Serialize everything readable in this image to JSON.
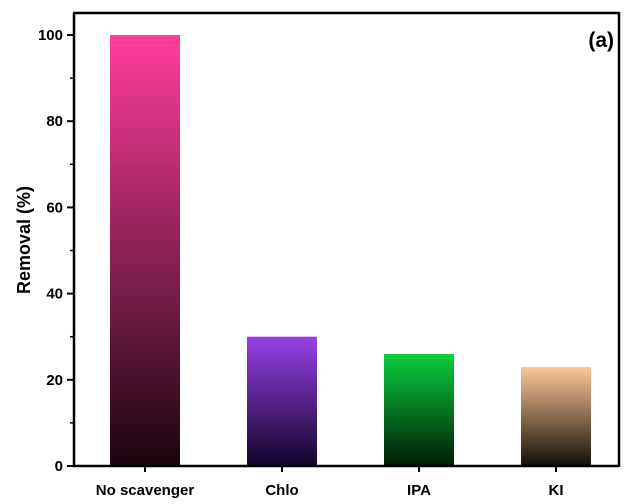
{
  "chart_data": {
    "type": "bar",
    "panel_label": "(a)",
    "title": "",
    "xlabel": "",
    "ylabel": "Removal (%)",
    "ylim": [
      0,
      105
    ],
    "yticks": [
      0,
      20,
      40,
      60,
      80,
      100
    ],
    "grid": false,
    "categories": [
      "No scavenger",
      "Chlo",
      "IPA",
      "KI"
    ],
    "values": [
      100,
      30,
      26,
      23
    ],
    "colors": [
      {
        "top": "#ff3d9a",
        "bottom": "#1a060f"
      },
      {
        "top": "#9640e6",
        "bottom": "#12052a"
      },
      {
        "top": "#0ccf3c",
        "bottom": "#001a05"
      },
      {
        "top": "#fdc896",
        "bottom": "#120e08"
      }
    ]
  }
}
